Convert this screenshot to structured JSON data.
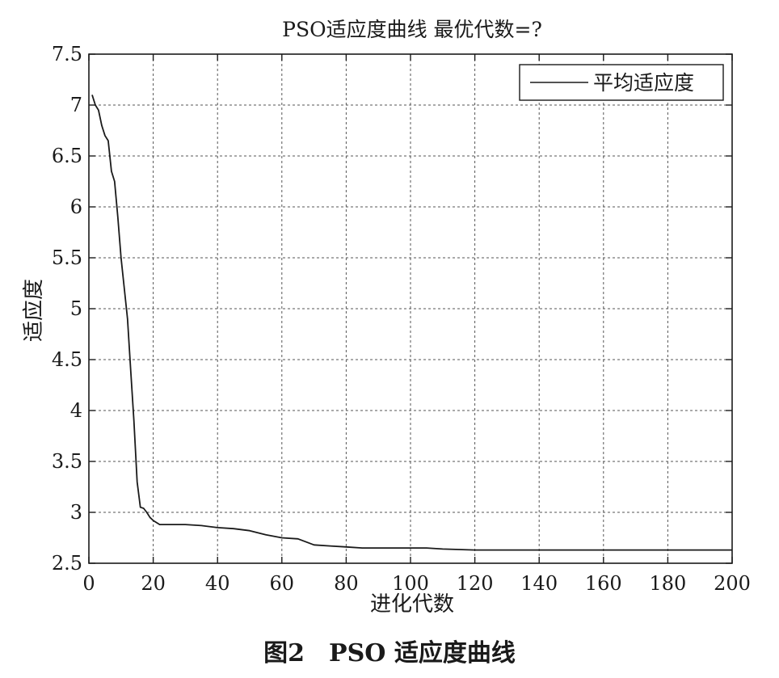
{
  "chart_data": {
    "type": "line",
    "title": "PSO适应度曲线 最优代数=?",
    "xlabel": "进化代数",
    "ylabel": "适应度",
    "xlim": [
      0,
      200
    ],
    "ylim": [
      2.5,
      7.5
    ],
    "xticks": [
      0,
      20,
      40,
      60,
      80,
      100,
      120,
      140,
      160,
      180,
      200
    ],
    "yticks": [
      2.5,
      3,
      3.5,
      4,
      4.5,
      5,
      5.5,
      6,
      6.5,
      7,
      7.5
    ],
    "grid": true,
    "legend_position": "top-right",
    "series": [
      {
        "name": "平均适应度",
        "color": "#1a1a1a",
        "x": [
          1,
          2,
          3,
          4,
          5,
          6,
          7,
          8,
          9,
          10,
          11,
          12,
          13,
          14,
          15,
          16,
          17,
          18,
          19,
          20,
          22,
          25,
          30,
          35,
          40,
          45,
          50,
          55,
          60,
          65,
          70,
          75,
          80,
          85,
          90,
          95,
          100,
          105,
          110,
          120,
          140,
          160,
          180,
          200
        ],
        "y": [
          7.1,
          7.0,
          6.95,
          6.8,
          6.7,
          6.65,
          6.35,
          6.25,
          5.9,
          5.5,
          5.2,
          4.9,
          4.4,
          3.9,
          3.3,
          3.05,
          3.04,
          3.0,
          2.95,
          2.92,
          2.88,
          2.88,
          2.88,
          2.87,
          2.85,
          2.84,
          2.82,
          2.78,
          2.75,
          2.74,
          2.68,
          2.67,
          2.66,
          2.65,
          2.65,
          2.65,
          2.65,
          2.65,
          2.64,
          2.63,
          2.63,
          2.63,
          2.63,
          2.63
        ]
      }
    ]
  },
  "caption": "图2　PSO 适应度曲线"
}
